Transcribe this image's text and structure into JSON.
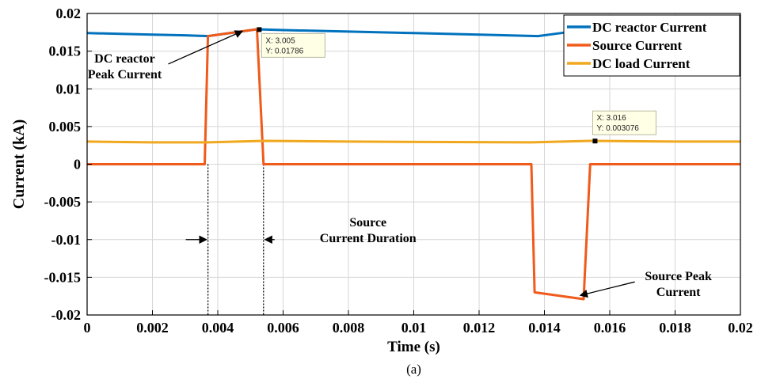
{
  "chart_data": {
    "type": "line",
    "xlabel": "Time (s)",
    "ylabel": "Current (kA)",
    "caption": "(a)",
    "xlim": [
      0,
      0.02
    ],
    "ylim": [
      -0.02,
      0.02
    ],
    "xticks": [
      0,
      0.002,
      0.004,
      0.006,
      0.008,
      0.01,
      0.012,
      0.014,
      0.016,
      0.018,
      0.02
    ],
    "yticks": [
      -0.02,
      -0.015,
      -0.01,
      -0.005,
      0,
      0.005,
      0.01,
      0.015,
      0.02
    ],
    "grid": true,
    "legend_position": "top-right",
    "series": [
      {
        "name": "DC reactor Current",
        "color": "#0072bd",
        "x": [
          0,
          0.001,
          0.002,
          0.003,
          0.0037,
          0.0052,
          0.006,
          0.008,
          0.01,
          0.012,
          0.0138,
          0.0145,
          0.0152,
          0.016,
          0.018,
          0.02
        ],
        "y": [
          0.0174,
          0.0173,
          0.0172,
          0.0171,
          0.017,
          0.0179,
          0.0178,
          0.0176,
          0.0174,
          0.0172,
          0.017,
          0.0174,
          0.0178,
          0.0177,
          0.0176,
          0.0175
        ]
      },
      {
        "name": "Source Current",
        "color": "#f05a1a",
        "x": [
          0,
          0.0036,
          0.0037,
          0.0052,
          0.0054,
          0.0136,
          0.0137,
          0.0152,
          0.0154,
          0.02
        ],
        "y": [
          0,
          0,
          0.017,
          0.0179,
          0,
          0,
          -0.017,
          -0.0179,
          0,
          0
        ]
      },
      {
        "name": "DC load Current",
        "color": "#f0a81e",
        "x": [
          0,
          0.002,
          0.0037,
          0.0054,
          0.008,
          0.0136,
          0.0154,
          0.018,
          0.02
        ],
        "y": [
          0.003,
          0.0029,
          0.0029,
          0.0031,
          0.003,
          0.0029,
          0.0031,
          0.003,
          0.003
        ]
      }
    ],
    "datatips": [
      {
        "x_label": "X: 3.005",
        "y_label": "Y: 0.01786",
        "x": 0.00527,
        "y": 0.01786
      },
      {
        "x_label": "X: 3.016",
        "y_label": "Y: 0.003076",
        "x": 0.01555,
        "y": 0.003076
      }
    ],
    "annotations": [
      {
        "lines": [
          "DC reactor",
          "Peak Current"
        ],
        "x": 0.00115,
        "y": 0.0135,
        "arrow_to": [
          0.00475,
          0.01765
        ]
      },
      {
        "lines": [
          "Source",
          "Current Duration"
        ],
        "x": 0.0086,
        "y": -0.00825,
        "arrow_to": null
      },
      {
        "lines": [
          "Source Peak",
          "Current"
        ],
        "x": 0.0181,
        "y": -0.0154,
        "arrow_to": [
          0.0151,
          -0.0174
        ]
      }
    ],
    "markers": {
      "duration_lines_x": [
        0.0037,
        0.0054
      ]
    }
  }
}
